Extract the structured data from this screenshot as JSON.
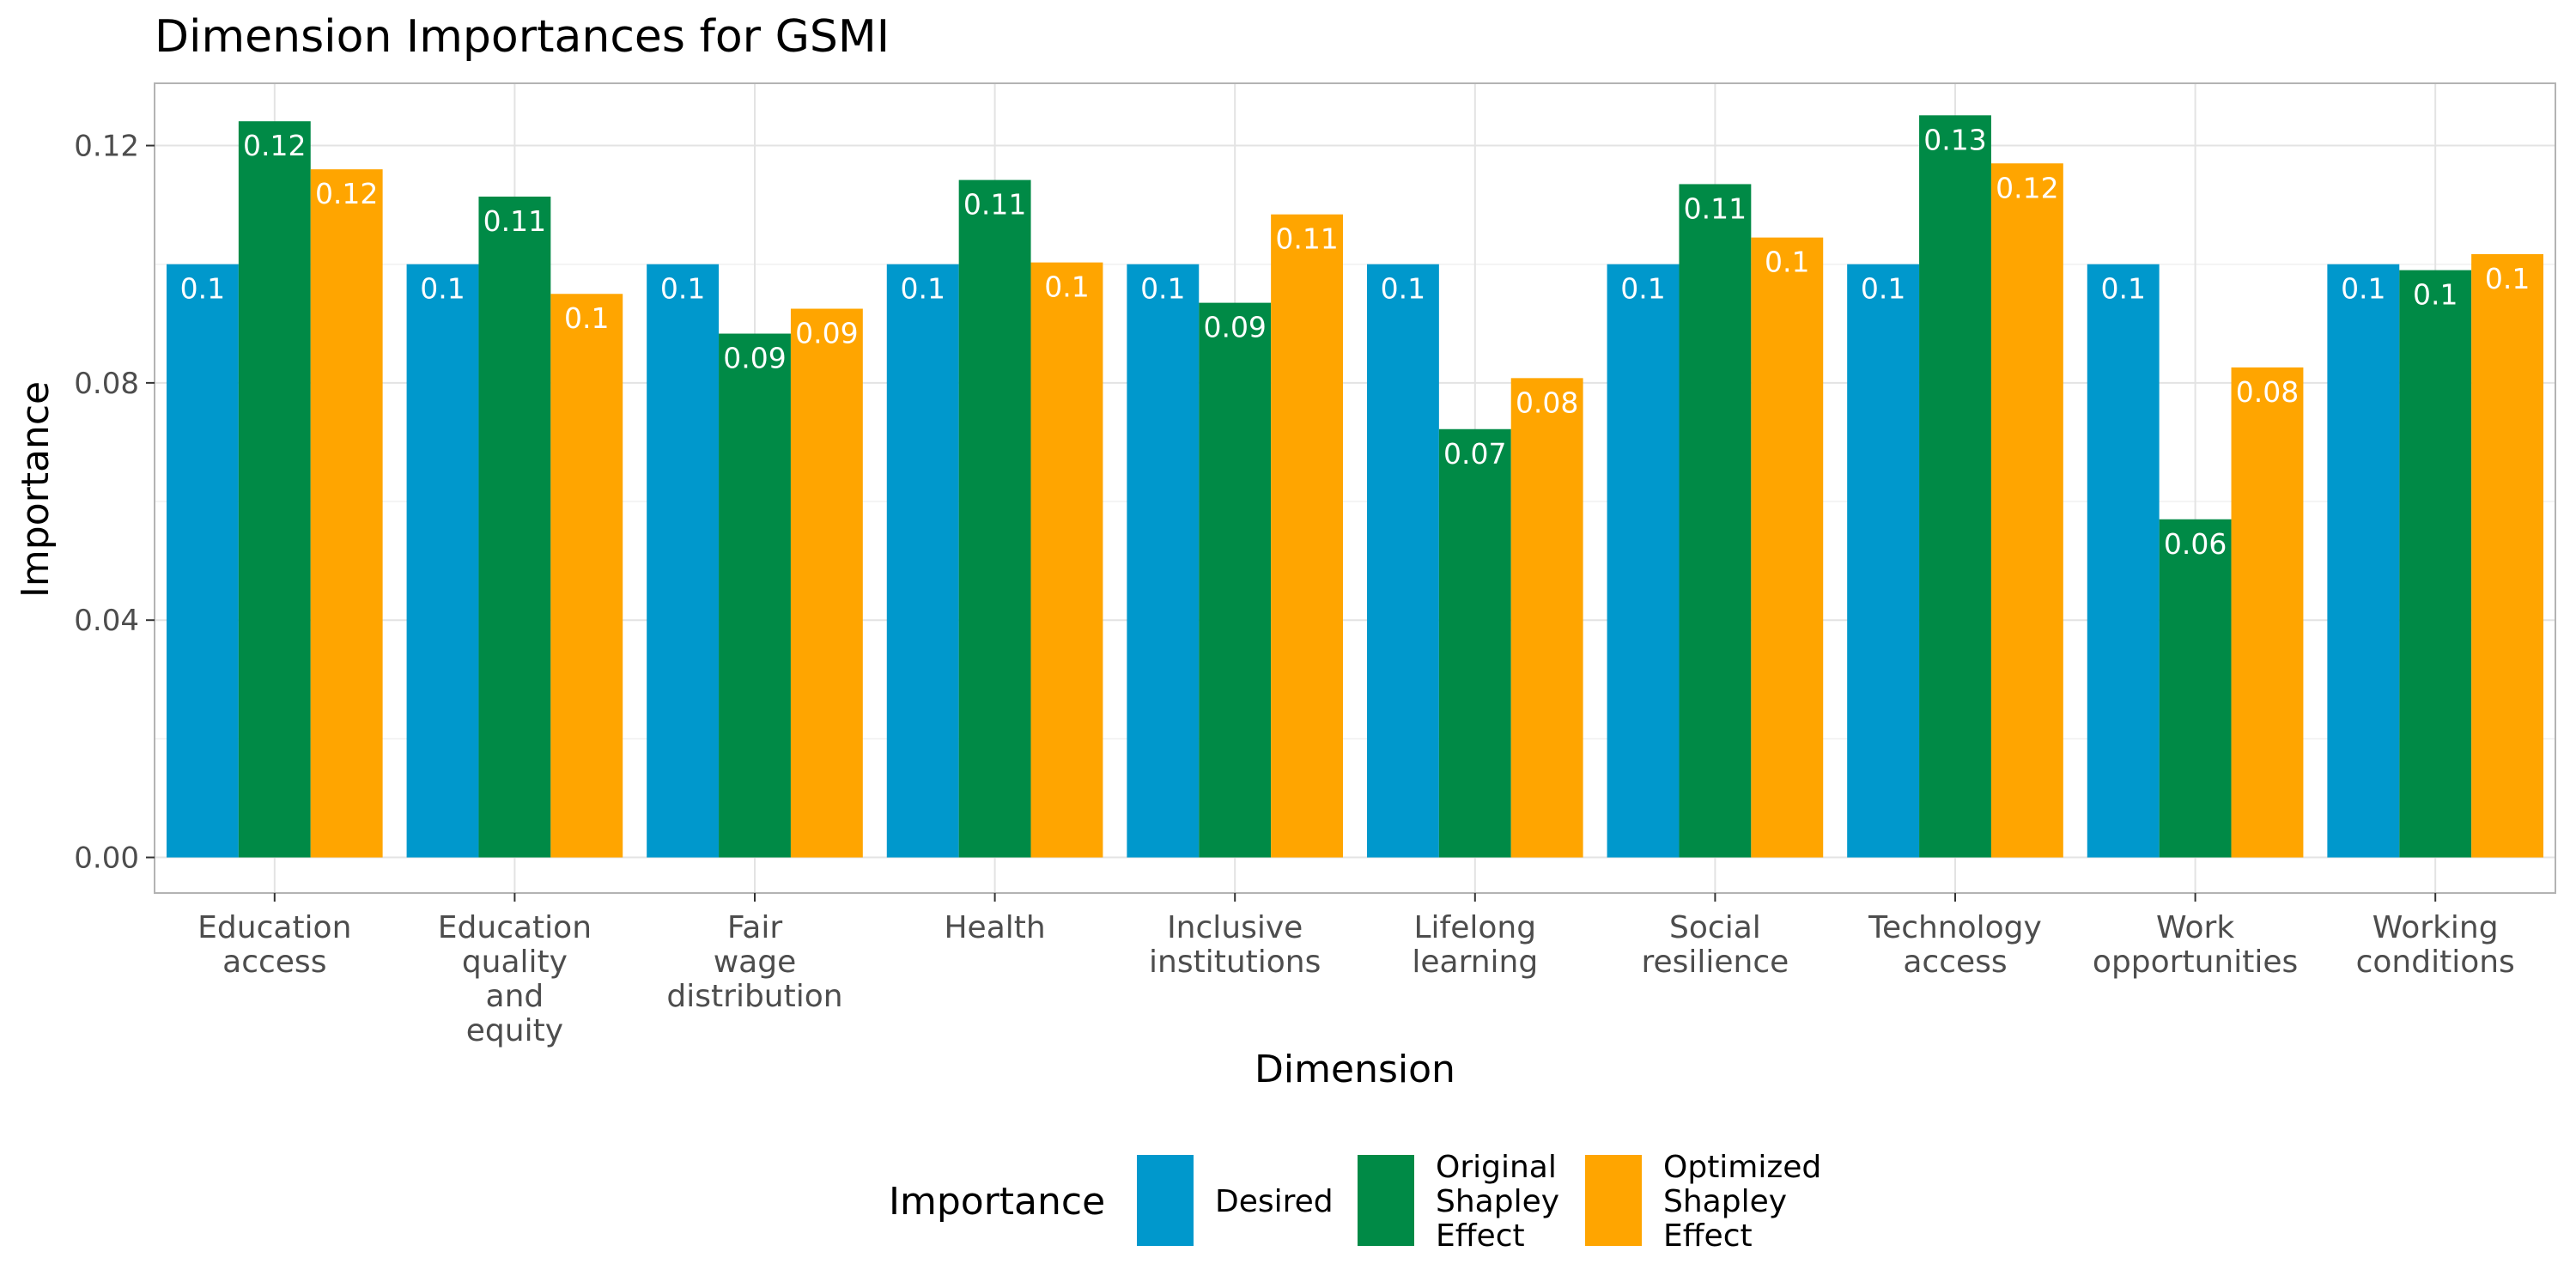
{
  "chart_data": {
    "type": "bar",
    "title": "Dimension Importances for GSMI",
    "xlabel": "Dimension",
    "ylabel": "Importance",
    "ylim": [
      -0.006,
      0.1305
    ],
    "yticks": [
      0.0,
      0.04,
      0.08,
      0.12
    ],
    "ytick_labels": [
      "0.00",
      "0.04",
      "0.08",
      "0.12"
    ],
    "grid": true,
    "legend_title": "Importance",
    "legend_position": "bottom",
    "categories": [
      [
        "Education",
        "access"
      ],
      [
        "Education",
        "quality",
        "and",
        "equity"
      ],
      [
        "Fair",
        "wage",
        "distribution"
      ],
      [
        "Health"
      ],
      [
        "Inclusive",
        "institutions"
      ],
      [
        "Lifelong",
        "learning"
      ],
      [
        "Social",
        "resilience"
      ],
      [
        "Technology",
        "access"
      ],
      [
        "Work",
        "opportunities"
      ],
      [
        "Working",
        "conditions"
      ]
    ],
    "series": [
      {
        "name": [
          "Desired"
        ],
        "color": "#0098CC",
        "values": [
          0.1,
          0.1,
          0.1,
          0.1,
          0.1,
          0.1,
          0.1,
          0.1,
          0.1,
          0.1
        ],
        "labels": [
          "0.1",
          "0.1",
          "0.1",
          "0.1",
          "0.1",
          "0.1",
          "0.1",
          "0.1",
          "0.1",
          "0.1"
        ]
      },
      {
        "name": [
          "Original",
          "Shapley",
          "Effect"
        ],
        "color": "#008A46",
        "values": [
          0.1241,
          0.1114,
          0.0883,
          0.1142,
          0.0935,
          0.0722,
          0.1135,
          0.1251,
          0.057,
          0.099
        ],
        "labels": [
          "0.12",
          "0.11",
          "0.09",
          "0.11",
          "0.09",
          "0.07",
          "0.11",
          "0.13",
          "0.06",
          "0.1"
        ]
      },
      {
        "name": [
          "Optimized",
          "Shapley",
          "Effect"
        ],
        "color": "#FFA500",
        "values": [
          0.116,
          0.095,
          0.0925,
          0.1003,
          0.1084,
          0.0808,
          0.1045,
          0.117,
          0.0826,
          0.1017
        ],
        "labels": [
          "0.12",
          "0.1",
          "0.09",
          "0.1",
          "0.11",
          "0.08",
          "0.1",
          "0.12",
          "0.08",
          "0.1"
        ]
      }
    ]
  }
}
